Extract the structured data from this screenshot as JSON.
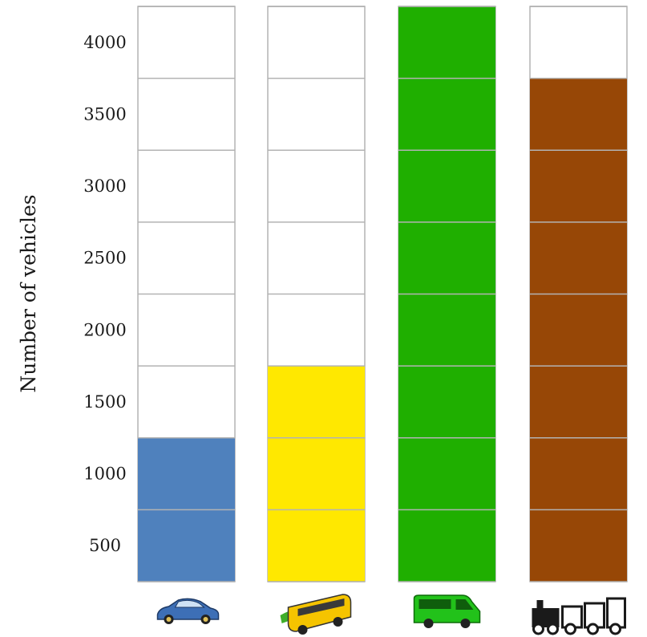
{
  "chart_data": {
    "type": "bar",
    "categories": [
      "car",
      "bus",
      "van",
      "train"
    ],
    "values": [
      1250,
      1750,
      4250,
      3750
    ],
    "ylabel": "Number of vehicles",
    "yticks": [
      500,
      1000,
      1500,
      2000,
      2500,
      3000,
      3500,
      4000
    ],
    "ylim": [
      250,
      4250
    ],
    "grid": true,
    "colors": [
      "#4f81bd",
      "#ffe800",
      "#1faf00",
      "#974706"
    ],
    "icons": [
      "car-icon",
      "bus-icon",
      "van-icon",
      "train-icon"
    ]
  }
}
